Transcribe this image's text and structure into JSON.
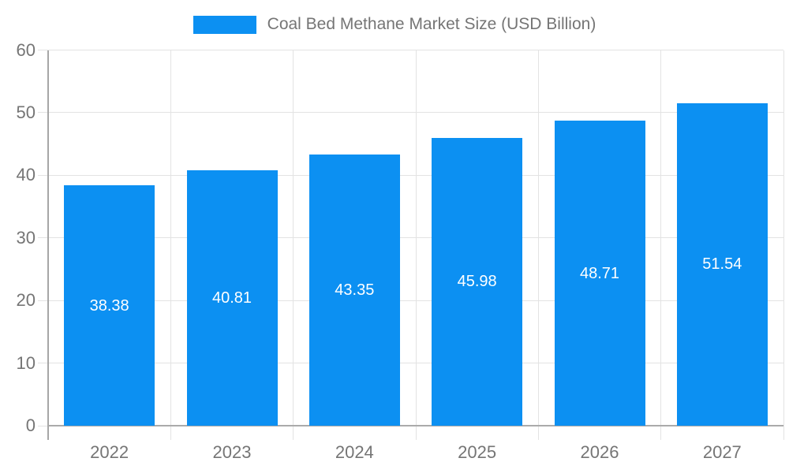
{
  "chart_data": {
    "type": "bar",
    "title": "Coal Bed Methane Market Size (USD Billion)",
    "categories": [
      "2022",
      "2023",
      "2024",
      "2025",
      "2026",
      "2027"
    ],
    "values": [
      38.38,
      40.81,
      43.35,
      45.98,
      48.71,
      51.54
    ],
    "value_labels": [
      "38.38",
      "40.81",
      "43.35",
      "45.98",
      "48.71",
      "51.54"
    ],
    "xlabel": "",
    "ylabel": "",
    "ylim": [
      0,
      60
    ],
    "yticks": [
      0,
      10,
      20,
      30,
      40,
      50,
      60
    ],
    "grid": true,
    "legend_position": "top-center",
    "colors": {
      "bar": "#0C90F2",
      "value_label": "#ffffff",
      "axis_text": "#757575",
      "legend_text": "#757575",
      "gridline": "#e3e3e3",
      "axis_line_left": "#a6a6a6",
      "axis_line_bottom": "#ababab"
    }
  }
}
